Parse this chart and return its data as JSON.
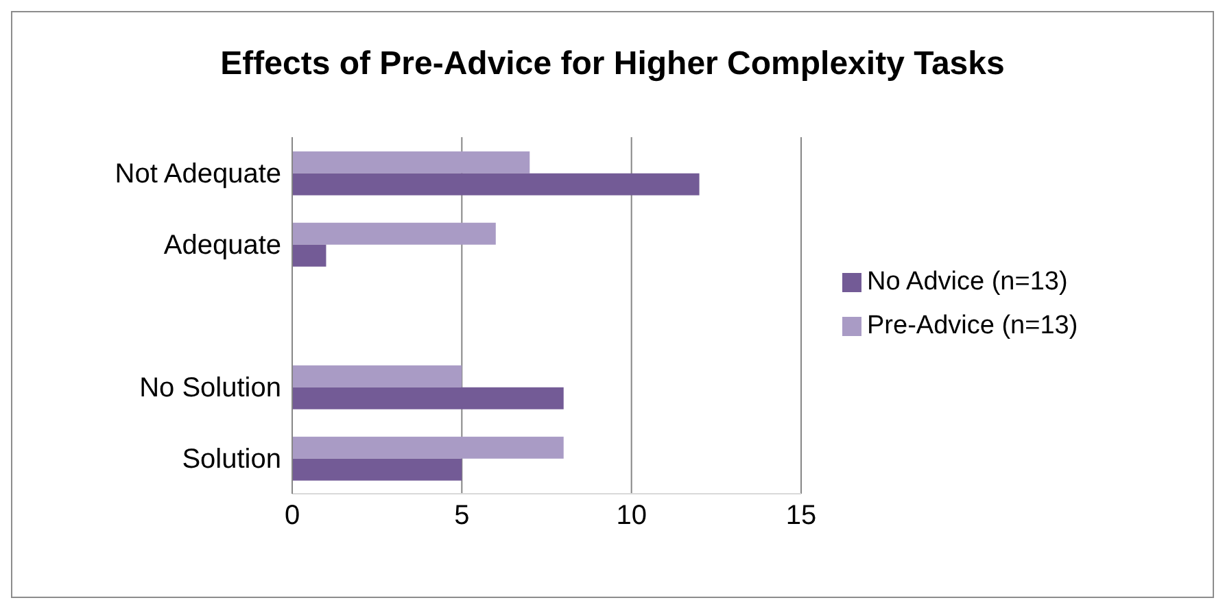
{
  "chart_data": {
    "type": "bar",
    "orientation": "horizontal",
    "title": "Effects of Pre-Advice for Higher Complexity Tasks",
    "categories": [
      "Not Adequate",
      "Adequate",
      null,
      "No Solution",
      "Solution"
    ],
    "series": [
      {
        "name": "Pre-Advice (n=13)",
        "color": "#a99bc5",
        "values": [
          7,
          6,
          null,
          5,
          8
        ]
      },
      {
        "name": "No Advice (n=13)",
        "color": "#735b96",
        "values": [
          12,
          1,
          null,
          8,
          5
        ]
      }
    ],
    "xlim": [
      0,
      15
    ],
    "xticks": [
      0,
      5,
      10,
      15
    ],
    "grid": "x",
    "legend": "right"
  }
}
